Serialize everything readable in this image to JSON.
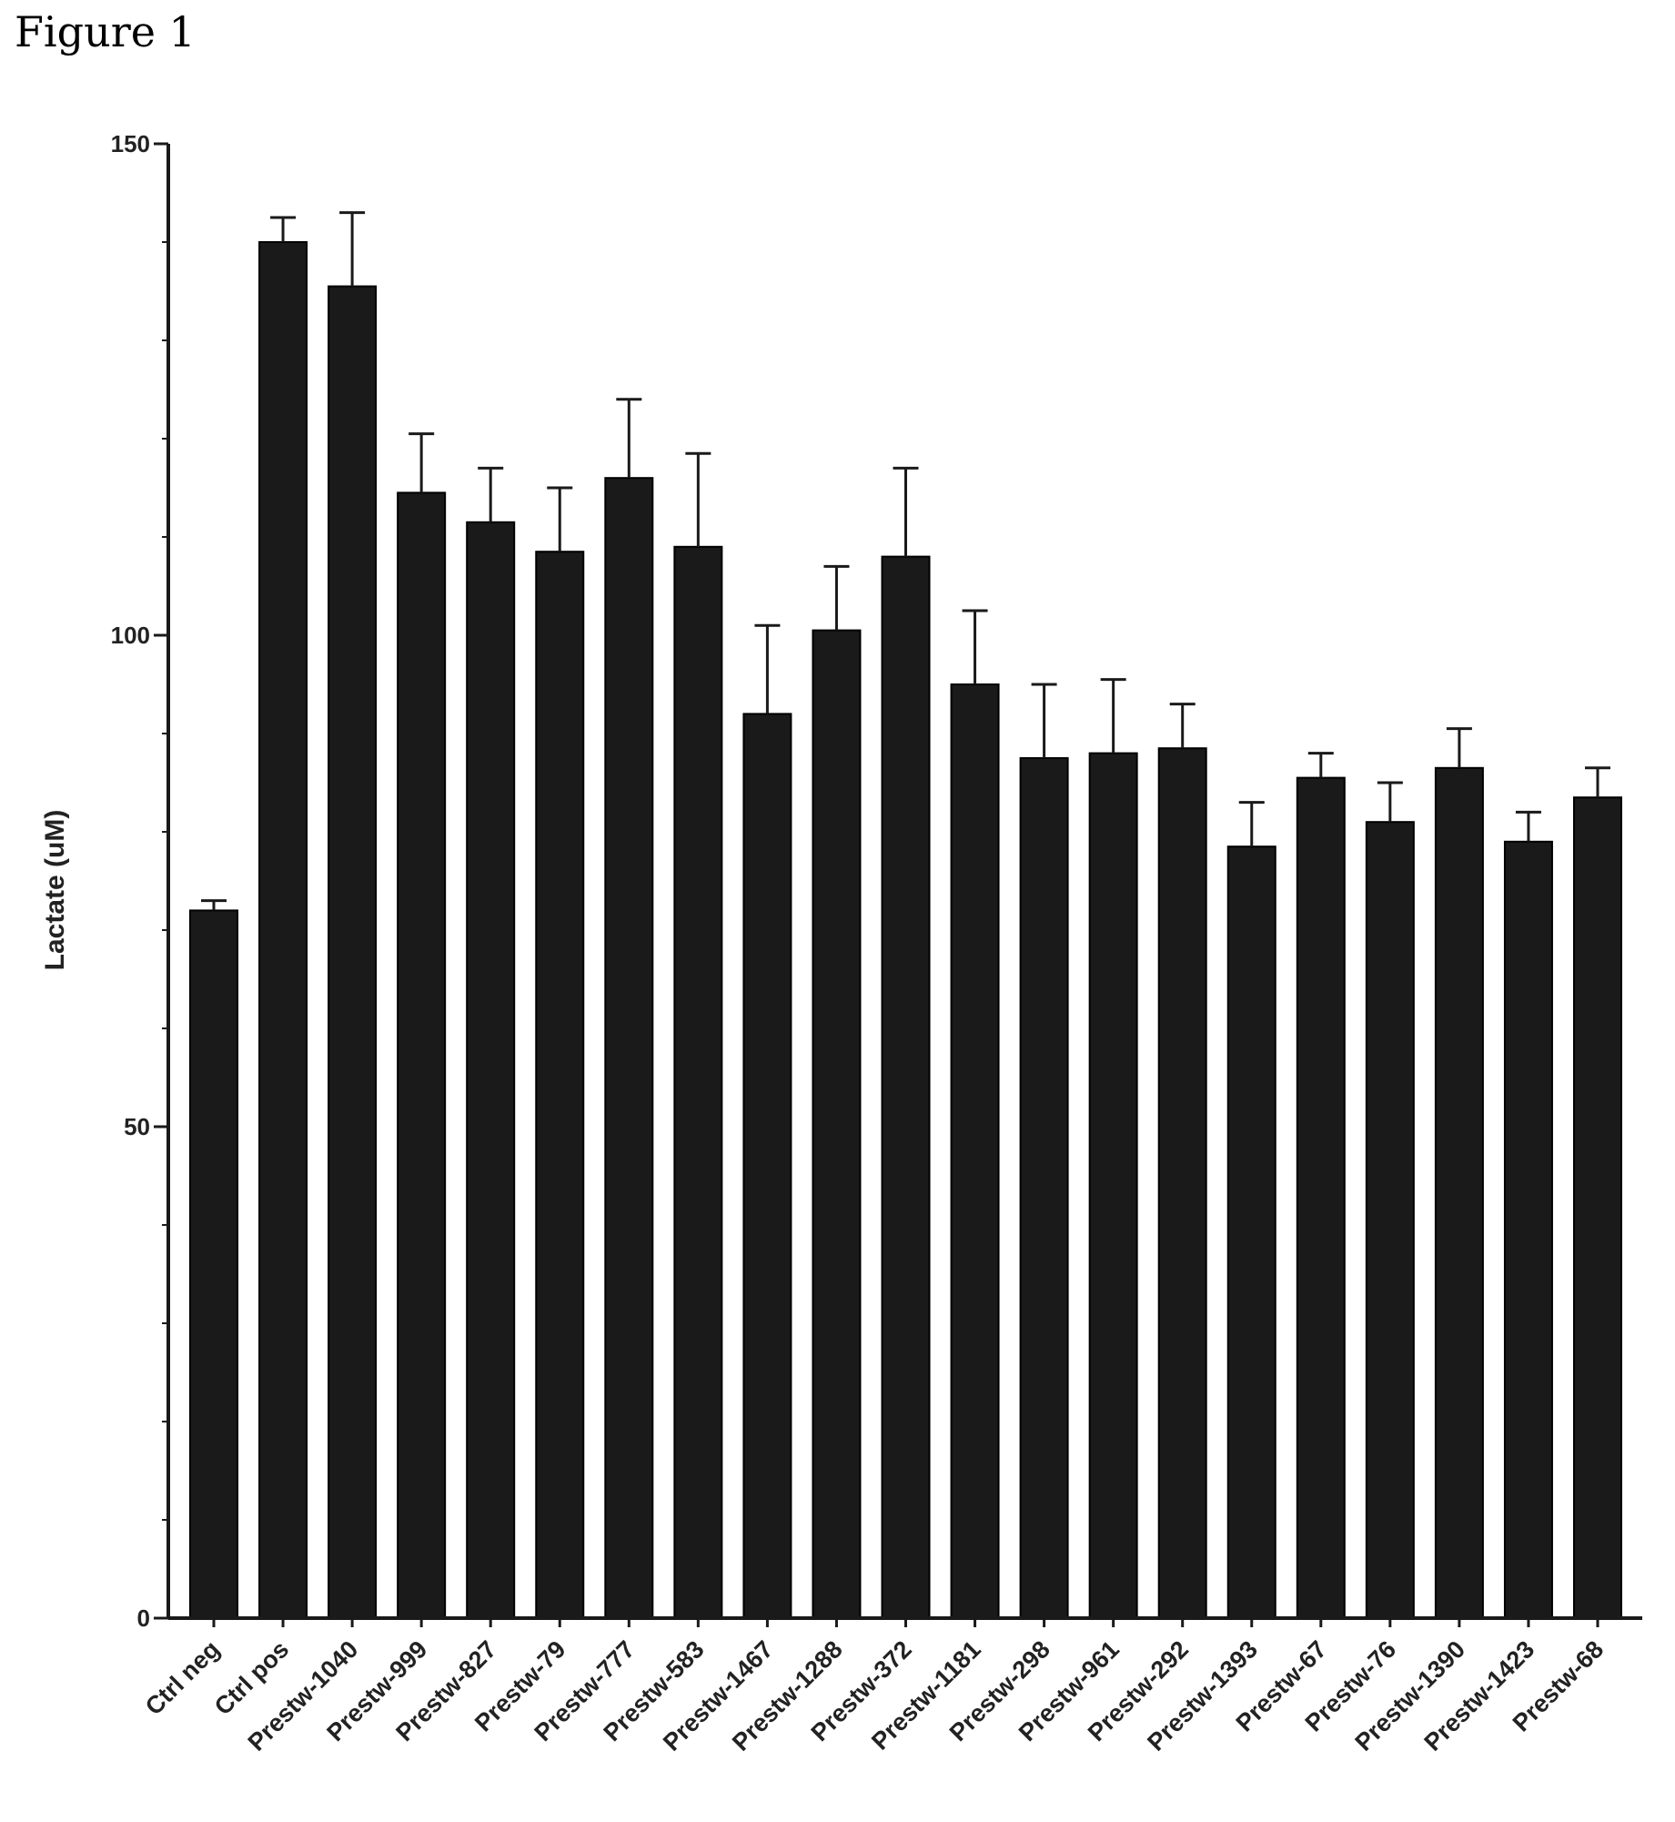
{
  "figure_label": "Figure 1",
  "chart_data": {
    "type": "bar",
    "title": "",
    "xlabel": "",
    "ylabel": "Lactate (uM)",
    "ylim": [
      0,
      150
    ],
    "yticks": [
      0,
      50,
      100,
      150
    ],
    "grid": false,
    "legend": "none",
    "bar_color": "#1a1a1a",
    "categories": [
      "Ctrl neg",
      "Ctrl pos",
      "Prestw-1040",
      "Prestw-999",
      "Prestw-827",
      "Prestw-79",
      "Prestw-777",
      "Prestw-583",
      "Prestw-1467",
      "Prestw-1288",
      "Prestw-372",
      "Prestw-1181",
      "Prestw-298",
      "Prestw-961",
      "Prestw-292",
      "Prestw-1393",
      "Prestw-67",
      "Prestw-76",
      "Prestw-1390",
      "Prestw-1423",
      "Prestw-68"
    ],
    "values": [
      72,
      140,
      135.5,
      114.5,
      111.5,
      108.5,
      116,
      109,
      92,
      100.5,
      108,
      95,
      87.5,
      88,
      88.5,
      78.5,
      85.5,
      81,
      86.5,
      79,
      83.5
    ],
    "errors": [
      1,
      2.5,
      7.5,
      6,
      5.5,
      6.5,
      8,
      9.5,
      9,
      6.5,
      9,
      7.5,
      7.5,
      7.5,
      4.5,
      4.5,
      2.5,
      4,
      4,
      3,
      3
    ]
  }
}
